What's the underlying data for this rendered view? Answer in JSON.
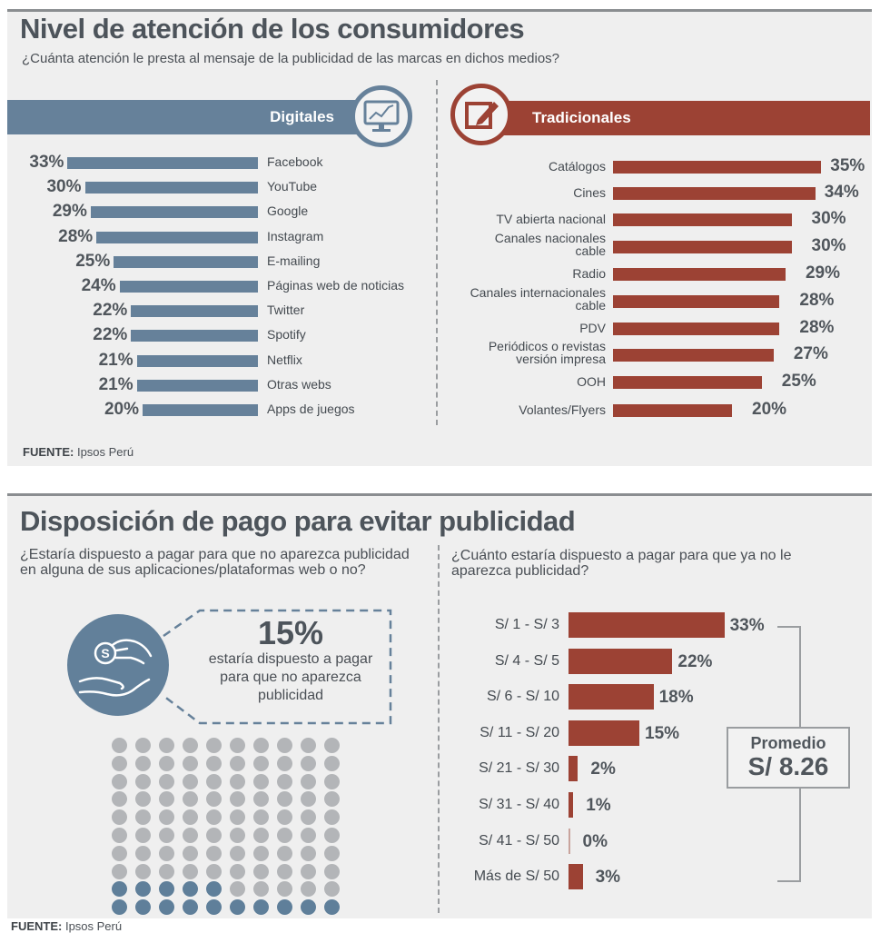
{
  "section1": {
    "title": "Nivel de atención de los consumidores",
    "subtitle": "¿Cuánta atención le presta al mensaje de la publicidad de las marcas en dichos medios?",
    "digital_label": "Digitales",
    "traditional_label": "Tradicionales",
    "source_label": "FUENTE:",
    "source_value": " Ipsos Perú"
  },
  "section2": {
    "title": "Disposición de pago para evitar publicidad",
    "question_left": "¿Estaría dispuesto a pagar para que no aparezca publicidad en alguna de sus aplicaciones/plataformas web o no?",
    "question_right": "¿Cuánto estaría dispuesto a pagar para que ya no le aparezca publicidad?",
    "highlight_pct": "15%",
    "highlight_text": "estaría dispuesto a pagar para que no aparezca publicidad",
    "average_label": "Promedio",
    "average_value": "S/ 8.26",
    "source_label": "FUENTE:",
    "source_value": " Ipsos Perú"
  },
  "colors": {
    "digital": "#66819a",
    "traditional": "#9c4234",
    "dot_grey": "#b3b5b8",
    "dot_blue": "#5f7f9a"
  },
  "chart_data": [
    {
      "type": "bar",
      "title": "Digitales",
      "orientation": "horizontal",
      "categories": [
        "Facebook",
        "YouTube",
        "Google",
        "Instagram",
        "E-mailing",
        "Páginas web de noticias",
        "Twitter",
        "Spotify",
        "Netflix",
        "Otras webs",
        "Apps de juegos"
      ],
      "values": [
        33,
        30,
        29,
        28,
        25,
        24,
        22,
        22,
        21,
        21,
        20
      ],
      "labels": [
        "33%",
        "30%",
        "29%",
        "28%",
        "25%",
        "24%",
        "22%",
        "22%",
        "21%",
        "21%",
        "20%"
      ],
      "unit": "%"
    },
    {
      "type": "bar",
      "title": "Tradicionales",
      "orientation": "horizontal",
      "categories": [
        "Catálogos",
        "Cines",
        "TV abierta nacional",
        "Canales nacionales cable",
        "Radio",
        "Canales internacionales cable",
        "PDV",
        "Periódicos o revistas versión impresa",
        "OOH",
        "Volantes/Flyers"
      ],
      "values": [
        35,
        34,
        30,
        30,
        29,
        28,
        28,
        27,
        25,
        20
      ],
      "labels": [
        "35%",
        "34%",
        "30%",
        "30%",
        "29%",
        "28%",
        "28%",
        "27%",
        "25%",
        "20%"
      ],
      "unit": "%"
    },
    {
      "type": "waffle",
      "title": "¿Estaría dispuesto a pagar para que no aparezca publicidad?",
      "total": 100,
      "highlighted": 15,
      "label": "15%"
    },
    {
      "type": "bar",
      "title": "¿Cuánto estaría dispuesto a pagar para que ya no le aparezca publicidad?",
      "orientation": "horizontal",
      "categories": [
        "S/ 1 - S/ 3",
        "S/ 4 - S/ 5",
        "S/ 6 - S/ 10",
        "S/ 11 - S/ 20",
        "S/ 21 - S/ 30",
        "S/ 31 - S/ 40",
        "S/ 41 - S/ 50",
        "Más de S/ 50"
      ],
      "values": [
        33,
        22,
        18,
        15,
        2,
        1,
        0,
        3
      ],
      "labels": [
        "33%",
        "22%",
        "18%",
        "15%",
        "2%",
        "1%",
        "0%",
        "3%"
      ],
      "annotation": "Promedio S/ 8.26",
      "unit": "%"
    }
  ]
}
